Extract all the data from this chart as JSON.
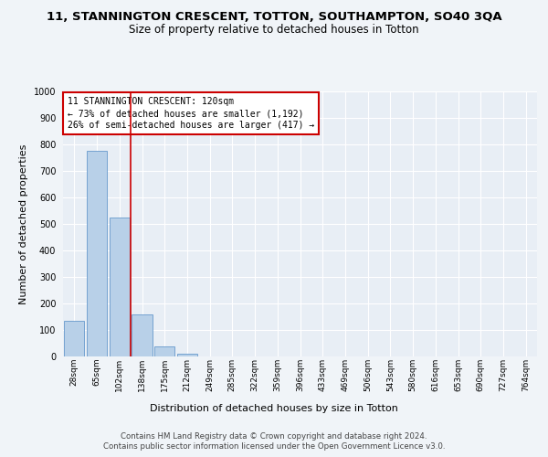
{
  "title": "11, STANNINGTON CRESCENT, TOTTON, SOUTHAMPTON, SO40 3QA",
  "subtitle": "Size of property relative to detached houses in Totton",
  "xlabel": "Distribution of detached houses by size in Totton",
  "ylabel": "Number of detached properties",
  "bar_labels": [
    "28sqm",
    "65sqm",
    "102sqm",
    "138sqm",
    "175sqm",
    "212sqm",
    "249sqm",
    "285sqm",
    "322sqm",
    "359sqm",
    "396sqm",
    "433sqm",
    "469sqm",
    "506sqm",
    "543sqm",
    "580sqm",
    "616sqm",
    "653sqm",
    "690sqm",
    "727sqm",
    "764sqm"
  ],
  "bar_values": [
    133,
    775,
    525,
    160,
    38,
    12,
    0,
    0,
    0,
    0,
    0,
    0,
    0,
    0,
    0,
    0,
    0,
    0,
    0,
    0,
    0
  ],
  "bar_color": "#b8d0e8",
  "bar_edgecolor": "#6699cc",
  "annotation_line1": "11 STANNINGTON CRESCENT: 120sqm",
  "annotation_line2": "← 73% of detached houses are smaller (1,192)",
  "annotation_line3": "26% of semi-detached houses are larger (417) →",
  "vline_color": "#cc0000",
  "ylim": [
    0,
    1000
  ],
  "yticks": [
    0,
    100,
    200,
    300,
    400,
    500,
    600,
    700,
    800,
    900,
    1000
  ],
  "bg_color": "#e8eef5",
  "fig_color": "#f0f4f8",
  "footer1": "Contains HM Land Registry data © Crown copyright and database right 2024.",
  "footer2": "Contains public sector information licensed under the Open Government Licence v3.0.",
  "annotation_box_color": "#ffffff",
  "annotation_box_edgecolor": "#cc0000"
}
